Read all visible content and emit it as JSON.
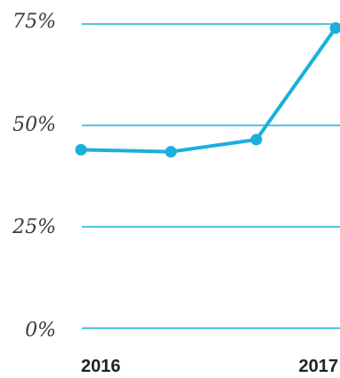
{
  "chart_data": {
    "type": "line",
    "title": "",
    "xlabel": "",
    "ylabel": "",
    "x_tick_labels": [
      "2016",
      "2017"
    ],
    "y_tick_labels": [
      "0%",
      "25%",
      "50%",
      "75%"
    ],
    "y_ticks": [
      0,
      25,
      50,
      75
    ],
    "ylim": [
      0,
      75
    ],
    "grid": "horizontal",
    "legend": "none",
    "series": [
      {
        "x": [
          0,
          1,
          2,
          3
        ],
        "values": [
          44,
          43.5,
          46.5,
          74
        ],
        "color": "#1ab0dc"
      }
    ]
  },
  "colors": {
    "line": "#1ab0dc",
    "grid": "#1ab0dc"
  }
}
